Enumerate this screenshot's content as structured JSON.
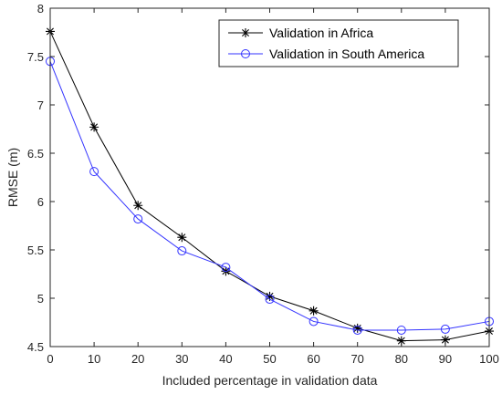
{
  "chart_data": {
    "type": "line",
    "xlabel": "Included percentage in validation data",
    "ylabel": "RMSE (m)",
    "xlim": [
      0,
      100
    ],
    "ylim": [
      4.5,
      8
    ],
    "x": [
      0,
      10,
      20,
      30,
      40,
      50,
      60,
      70,
      80,
      90,
      100
    ],
    "x_ticks": [
      0,
      10,
      20,
      30,
      40,
      50,
      60,
      70,
      80,
      90,
      100
    ],
    "x_tick_labels": [
      "0",
      "10",
      "20",
      "30",
      "40",
      "50",
      "60",
      "70",
      "80",
      "90",
      "100"
    ],
    "y_ticks": [
      4.5,
      5,
      5.5,
      6,
      6.5,
      7,
      7.5,
      8
    ],
    "y_tick_labels": [
      "4.5",
      "5",
      "5.5",
      "6",
      "6.5",
      "7",
      "7.5",
      "8"
    ],
    "grid": false,
    "legend_position": "top-right",
    "series": [
      {
        "name": "Validation in Africa",
        "color": "#000000",
        "marker": "asterisk",
        "values": [
          7.76,
          6.77,
          5.96,
          5.63,
          5.28,
          5.02,
          4.87,
          4.69,
          4.56,
          4.57,
          4.66
        ]
      },
      {
        "name": "Validation in South America",
        "color": "#3333ff",
        "marker": "circle",
        "values": [
          7.45,
          6.31,
          5.82,
          5.49,
          5.32,
          4.99,
          4.76,
          4.67,
          4.67,
          4.68,
          4.76
        ]
      }
    ]
  }
}
